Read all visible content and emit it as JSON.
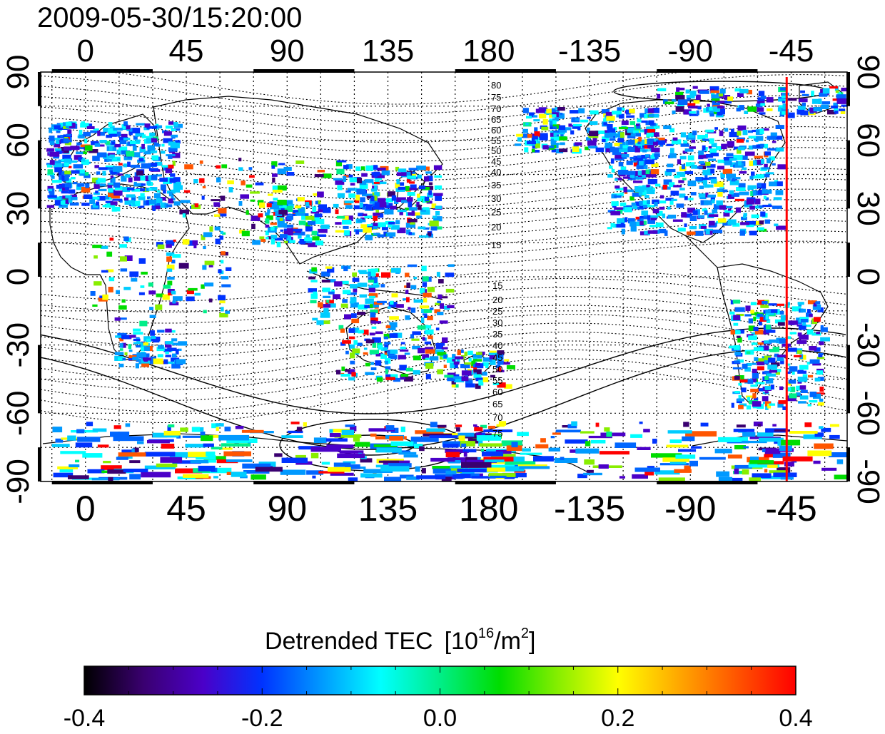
{
  "timestamp": "2009-05-30/15:20:00",
  "lon_ticks": [
    "0",
    "45",
    "90",
    "135",
    "180",
    "-135",
    "-90",
    "-45"
  ],
  "lat_ticks": [
    "90",
    "60",
    "30",
    "0",
    "-30",
    "-60",
    "-90"
  ],
  "contour_labels_north": [
    "80",
    "75",
    "70",
    "65",
    "60",
    "55",
    "50",
    "45",
    "40",
    "35",
    "30",
    "25",
    "20",
    "15"
  ],
  "contour_labels_south": [
    "15",
    "20",
    "25",
    "30",
    "35",
    "40",
    "45",
    "50",
    "55",
    "60",
    "65",
    "70",
    "75"
  ],
  "colorbar": {
    "title": "Detrended TEC",
    "unit_base": "[10",
    "unit_exp": "16",
    "unit_mid": "/m",
    "unit_exp2": "2",
    "unit_close": "]",
    "tick_labels": [
      "-0.4",
      "-0.2",
      "0.0",
      "0.2",
      "0.4"
    ],
    "min": -0.4,
    "max": 0.4,
    "colors": [
      "#000000",
      "#3a0070",
      "#4b00c8",
      "#0033ff",
      "#0099ff",
      "#00ffff",
      "#00ee88",
      "#00dd00",
      "#88ee00",
      "#ffff00",
      "#ffaa00",
      "#ff5500",
      "#ff0000"
    ]
  },
  "terminator_line": {
    "longitude": -47,
    "color": "#ff0000"
  }
}
